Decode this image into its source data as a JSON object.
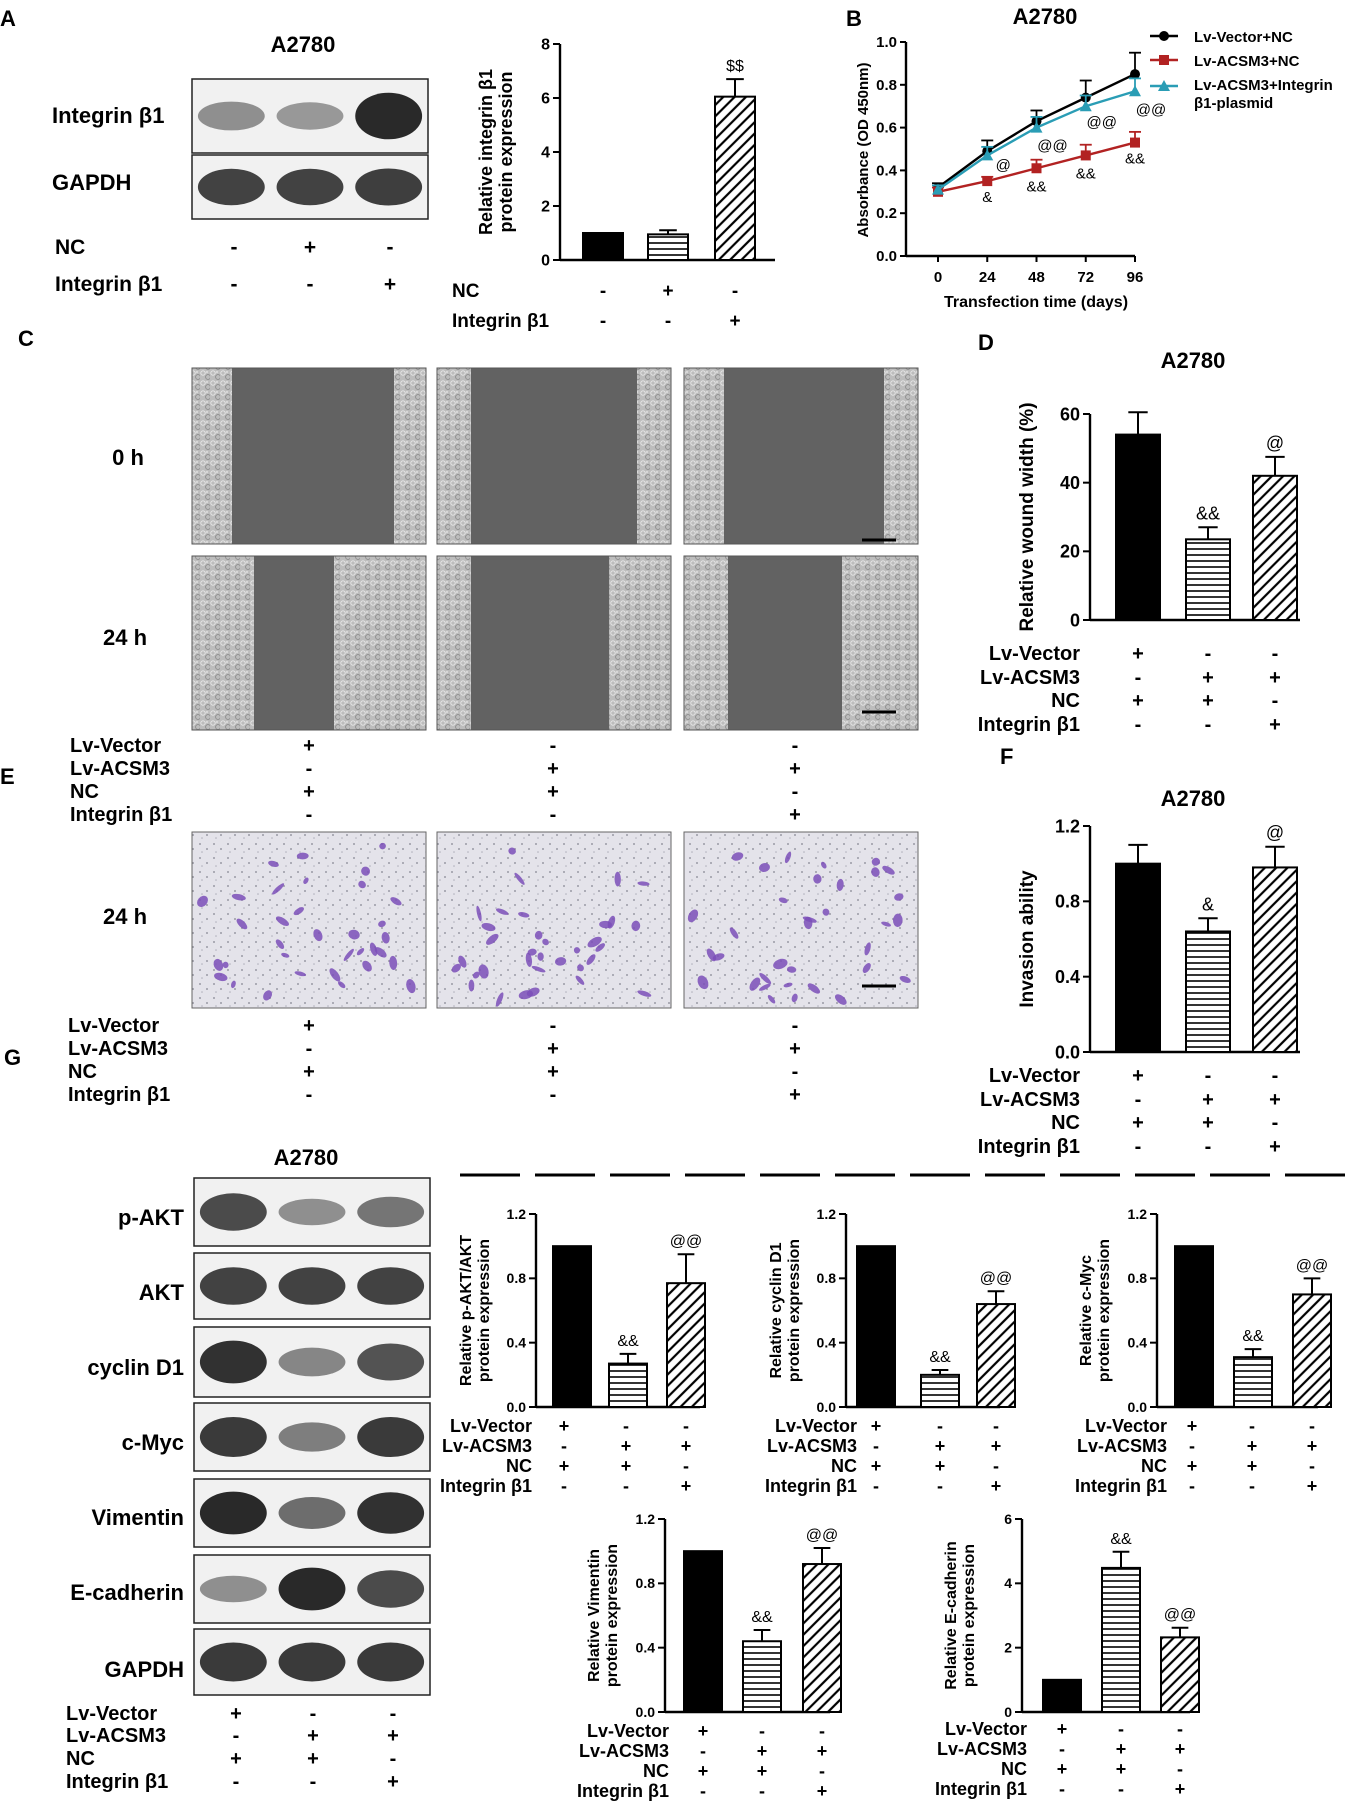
{
  "panel_letters": [
    "A",
    "B",
    "C",
    "D",
    "E",
    "F",
    "G"
  ],
  "cell_line": "A2780",
  "signs": {
    "plus": "+",
    "minus": "-"
  },
  "panelA": {
    "blot_labels": [
      "Integrin β1",
      "GAPDH"
    ],
    "condition_labels": [
      "NC",
      "Integrin β1"
    ],
    "chart_conditions": [
      "NC",
      "Integrin β1"
    ],
    "conditions": [
      [
        "-",
        "+",
        "-"
      ],
      [
        "-",
        "-",
        "+"
      ]
    ]
  },
  "panelC": {
    "time_labels": [
      "0 h",
      "24 h"
    ],
    "condition_labels": [
      "Lv-Vector",
      "Lv-ACSM3",
      "NC",
      "Integrin β1"
    ]
  },
  "panelE": {
    "time_label": "24 h",
    "condition_labels": [
      "Lv-Vector",
      "Lv-ACSM3",
      "NC",
      "Integrin β1"
    ]
  },
  "groups4": {
    "labels": [
      "Lv-Vector",
      "Lv-ACSM3",
      "NC",
      "Integrin β1"
    ],
    "signs": [
      [
        "+",
        "-",
        "-"
      ],
      [
        "-",
        "+",
        "+"
      ],
      [
        "+",
        "+",
        "-"
      ],
      [
        "-",
        "-",
        "+"
      ]
    ]
  },
  "panelG": {
    "blot_labels": [
      "p-AKT",
      "AKT",
      "cyclin D1",
      "c-Myc",
      "Vimentin",
      "E-cadherin",
      "GAPDH"
    ]
  },
  "chart_data": [
    {
      "id": "A",
      "type": "bar",
      "ylabel": "Relative integrin β1\nprotein expression",
      "ylim": [
        0,
        8
      ],
      "yticks": [
        0,
        2,
        4,
        6,
        8
      ],
      "values": [
        1.0,
        0.95,
        6.05
      ],
      "errors": [
        0,
        0.15,
        0.65
      ],
      "annotations": [
        "",
        "",
        "$$"
      ]
    },
    {
      "id": "B",
      "type": "line",
      "title": "A2780",
      "xlabel": "Transfection time (days)",
      "ylabel": "Absorbance (OD 450nm)",
      "x": [
        0,
        24,
        48,
        72,
        96
      ],
      "ylim": [
        0,
        1.0
      ],
      "yticks": [
        "0.0",
        "0.2",
        "0.4",
        "0.6",
        "0.8",
        "1.0"
      ],
      "series": [
        {
          "name": "Lv-Vector+NC",
          "color": "#000000",
          "marker": "circle",
          "values": [
            0.32,
            0.49,
            0.63,
            0.74,
            0.85
          ],
          "errors": [
            0.02,
            0.05,
            0.05,
            0.08,
            0.1
          ]
        },
        {
          "name": "Lv-ACSM3+NC",
          "color": "#b22222",
          "marker": "square",
          "values": [
            0.3,
            0.35,
            0.41,
            0.47,
            0.53
          ],
          "errors": [
            0.02,
            0.02,
            0.04,
            0.05,
            0.05
          ]
        },
        {
          "name": "Lv-ACSM3+Integrin β1-plasmid",
          "color": "#2a9db5",
          "marker": "triangle",
          "values": [
            0.31,
            0.47,
            0.6,
            0.7,
            0.77
          ],
          "errors": [
            0.02,
            0.04,
            0.05,
            0.05,
            0.06
          ]
        }
      ],
      "annotations": [
        {
          "x": 24,
          "text": "&",
          "y": 0.28
        },
        {
          "x": 48,
          "text": "&&",
          "y": 0.33
        },
        {
          "x": 72,
          "text": "&&",
          "y": 0.39
        },
        {
          "x": 96,
          "text": "&&",
          "y": 0.46
        },
        {
          "x": 24,
          "text": "@",
          "y": 0.43
        },
        {
          "x": 48,
          "text": "@@",
          "y": 0.52
        },
        {
          "x": 72,
          "text": "@@",
          "y": 0.63
        },
        {
          "x": 96,
          "text": "@@",
          "y": 0.69
        }
      ]
    },
    {
      "id": "D",
      "type": "bar",
      "title": "A2780",
      "ylabel": "Relative wound width (%)",
      "ylim": [
        0,
        60
      ],
      "yticks": [
        0,
        20,
        40,
        60
      ],
      "values": [
        54,
        23.5,
        42
      ],
      "errors": [
        6.5,
        3.5,
        5.5
      ],
      "annotations": [
        "",
        "&&",
        "@"
      ]
    },
    {
      "id": "F",
      "type": "bar",
      "title": "A2780",
      "ylabel": "Invasion ability",
      "ylim": [
        0,
        1.2
      ],
      "yticks": [
        "0.0",
        "0.4",
        "0.8",
        "1.2"
      ],
      "values": [
        1.0,
        0.64,
        0.98
      ],
      "errors": [
        0.1,
        0.07,
        0.11
      ],
      "annotations": [
        "",
        "&",
        "@"
      ]
    },
    {
      "id": "G1",
      "type": "bar",
      "ylabel": "Relative p-AKT/AKT\nprotein expression",
      "ylim": [
        0,
        1.2
      ],
      "yticks": [
        "0.0",
        "0.4",
        "0.8",
        "1.2"
      ],
      "values": [
        1.0,
        0.27,
        0.77
      ],
      "errors": [
        0,
        0.06,
        0.18
      ],
      "annotations": [
        "",
        "&&",
        "@@"
      ]
    },
    {
      "id": "G2",
      "type": "bar",
      "ylabel": "Relative cyclin D1\nprotein expression",
      "ylim": [
        0,
        1.2
      ],
      "yticks": [
        "0.0",
        "0.4",
        "0.8",
        "1.2"
      ],
      "values": [
        1.0,
        0.2,
        0.64
      ],
      "errors": [
        0,
        0.03,
        0.08
      ],
      "annotations": [
        "",
        "&&",
        "@@"
      ]
    },
    {
      "id": "G3",
      "type": "bar",
      "ylabel": "Relative c-Myc\nprotein expression",
      "ylim": [
        0,
        1.2
      ],
      "yticks": [
        "0.0",
        "0.4",
        "0.8",
        "1.2"
      ],
      "values": [
        1.0,
        0.31,
        0.7
      ],
      "errors": [
        0,
        0.05,
        0.1
      ],
      "annotations": [
        "",
        "&&",
        "@@"
      ]
    },
    {
      "id": "G4",
      "type": "bar",
      "ylabel": "Relative Vimentin\nprotein expression",
      "ylim": [
        0,
        1.2
      ],
      "yticks": [
        "0.0",
        "0.4",
        "0.8",
        "1.2"
      ],
      "values": [
        1.0,
        0.44,
        0.92
      ],
      "errors": [
        0,
        0.07,
        0.1
      ],
      "annotations": [
        "",
        "&&",
        "@@"
      ]
    },
    {
      "id": "G5",
      "type": "bar",
      "ylabel": "Relative E-cadherin\nprotein expression",
      "ylim": [
        0,
        6
      ],
      "yticks": [
        0,
        2,
        4,
        6
      ],
      "values": [
        1.0,
        4.48,
        2.32
      ],
      "errors": [
        0,
        0.5,
        0.3
      ],
      "annotations": [
        "",
        "&&",
        "@@"
      ]
    }
  ]
}
